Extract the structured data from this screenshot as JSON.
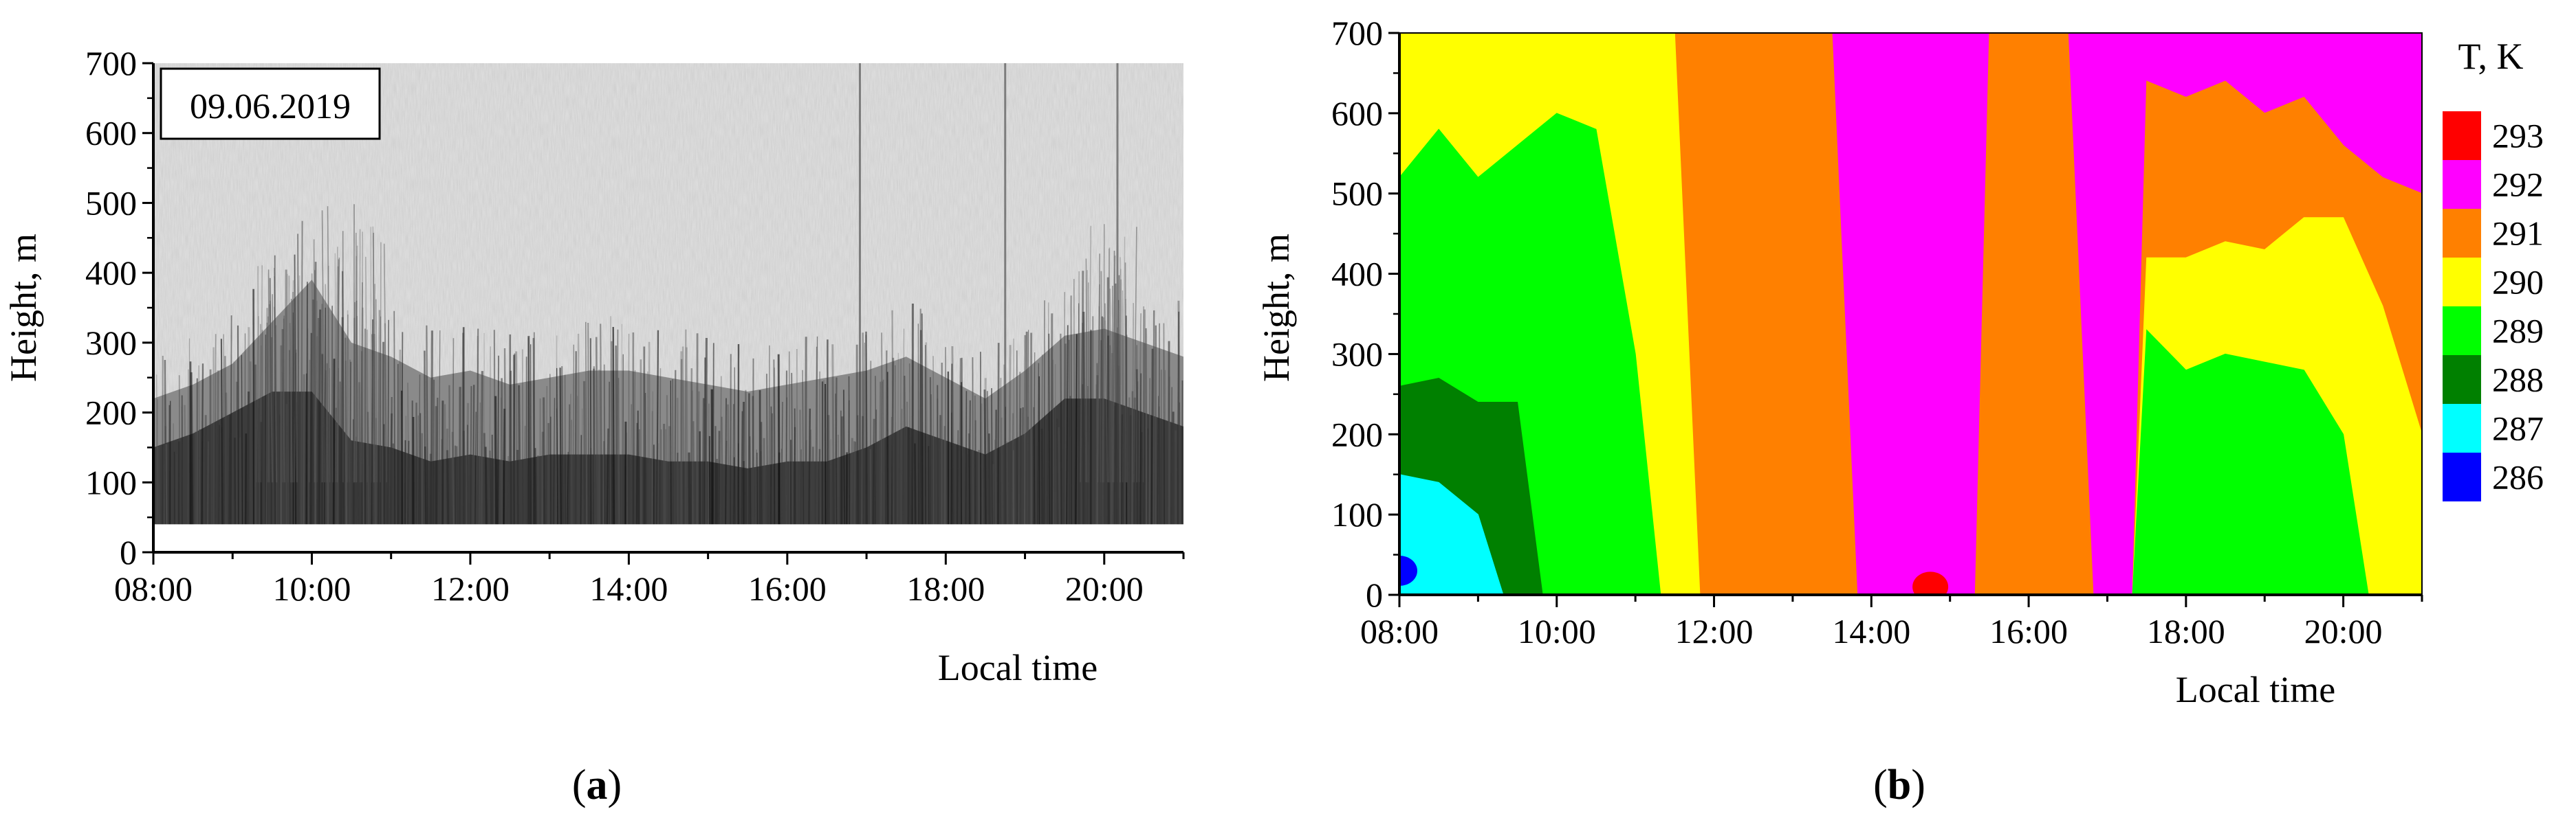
{
  "chart_data": [
    {
      "id": "a",
      "type": "heatmap",
      "panel_label": "a",
      "annotation": "09.06.2019",
      "xlabel": "Local time",
      "ylabel": "Height, m",
      "x_ticks": [
        "08:00",
        "10:00",
        "12:00",
        "14:00",
        "16:00",
        "18:00",
        "20:00"
      ],
      "y_ticks": [
        0,
        100,
        200,
        300,
        400,
        500,
        600,
        700
      ],
      "xlim": [
        "08:00",
        "21:00"
      ],
      "ylim": [
        0,
        700
      ],
      "sampling_lower_limit_m": 40,
      "colormap": "grayscale (dark = strong echo)",
      "mixing_layer_top_m": {
        "time": [
          "08:00",
          "08:30",
          "09:00",
          "09:30",
          "10:00",
          "10:30",
          "11:00",
          "11:30",
          "12:00",
          "12:30",
          "13:00",
          "13:30",
          "14:00",
          "14:30",
          "15:00",
          "15:30",
          "16:00",
          "16:30",
          "17:00",
          "17:30",
          "18:00",
          "18:30",
          "19:00",
          "19:30",
          "20:00",
          "20:30",
          "21:00"
        ],
        "height": [
          220,
          240,
          270,
          330,
          390,
          300,
          280,
          250,
          260,
          240,
          250,
          260,
          260,
          250,
          240,
          230,
          240,
          250,
          260,
          280,
          250,
          220,
          260,
          310,
          320,
          300,
          280
        ]
      },
      "dense_layer_top_m": {
        "time": [
          "08:00",
          "08:30",
          "09:00",
          "09:30",
          "10:00",
          "10:30",
          "11:00",
          "11:30",
          "12:00",
          "12:30",
          "13:00",
          "13:30",
          "14:00",
          "14:30",
          "15:00",
          "15:30",
          "16:00",
          "16:30",
          "17:00",
          "17:30",
          "18:00",
          "18:30",
          "19:00",
          "19:30",
          "20:00",
          "20:30",
          "21:00"
        ],
        "height": [
          150,
          170,
          200,
          230,
          230,
          160,
          150,
          130,
          140,
          130,
          140,
          140,
          140,
          130,
          130,
          120,
          130,
          130,
          150,
          180,
          160,
          140,
          170,
          220,
          220,
          200,
          180
        ]
      },
      "vertical_streaks": [
        "16:55",
        "18:45",
        "20:10"
      ],
      "echo_plumes": [
        {
          "time": "09:45",
          "top_m": 420
        },
        {
          "time": "10:30",
          "top_m": 500
        },
        {
          "time": "20:05",
          "top_m": 470
        }
      ]
    },
    {
      "id": "b",
      "type": "heatmap",
      "panel_label": "b",
      "xlabel": "Local time",
      "ylabel": "Height, m",
      "x_ticks": [
        "08:00",
        "10:00",
        "12:00",
        "14:00",
        "16:00",
        "18:00",
        "20:00"
      ],
      "y_ticks": [
        0,
        100,
        200,
        300,
        400,
        500,
        600,
        700
      ],
      "xlim": [
        "08:00",
        "21:00"
      ],
      "ylim": [
        0,
        700
      ],
      "colorbar": {
        "title": "T, K",
        "levels": [
          286,
          287,
          288,
          289,
          290,
          291,
          292,
          293,
          294
        ],
        "colors": [
          "#0000ff",
          "#00ffff",
          "#008000",
          "#00ff00",
          "#ffff00",
          "#ff8000",
          "#ff00ff",
          "#ff0000"
        ]
      },
      "temperature_bands": {
        "time": [
          "08:00",
          "08:30",
          "09:00",
          "09:30",
          "10:00",
          "10:30",
          "11:00",
          "11:30",
          "12:00",
          "12:30",
          "13:00",
          "13:30",
          "14:00",
          "14:30",
          "15:00",
          "15:30",
          "16:00",
          "16:30",
          "17:00",
          "17:30",
          "18:00",
          "18:30",
          "19:00",
          "19:30",
          "20:00",
          "20:30",
          "21:00"
        ],
        "series": [
          {
            "range": "287-288",
            "color": "#00ffff",
            "top_height_m": [
              150,
              140,
              100,
              0,
              0,
              0,
              0,
              0,
              0,
              0,
              0,
              0,
              0,
              0,
              0,
              0,
              0,
              0,
              0,
              0,
              0,
              0,
              0,
              0,
              0,
              0,
              0
            ]
          },
          {
            "range": "288-289",
            "color": "#008000",
            "top_height_m": [
              260,
              270,
              240,
              240,
              0,
              0,
              0,
              0,
              0,
              0,
              0,
              0,
              0,
              0,
              0,
              0,
              0,
              0,
              0,
              0,
              0,
              0,
              0,
              0,
              0,
              0,
              0
            ]
          },
          {
            "range": "289-290",
            "color": "#00ff00",
            "top_height_m": [
              520,
              580,
              520,
              560,
              600,
              580,
              300,
              0,
              0,
              0,
              0,
              0,
              0,
              0,
              0,
              0,
              0,
              0,
              0,
              330,
              280,
              300,
              290,
              280,
              200,
              0,
              0
            ]
          },
          {
            "range": "290-291",
            "color": "#ffff00",
            "top_height_m": [
              700,
              700,
              700,
              700,
              700,
              700,
              700,
              700,
              0,
              0,
              0,
              0,
              0,
              0,
              0,
              0,
              0,
              0,
              0,
              420,
              420,
              440,
              430,
              470,
              470,
              360,
              200
            ]
          },
          {
            "range": "291-292",
            "color": "#ff8000",
            "top_height_m": [
              700,
              700,
              700,
              700,
              700,
              700,
              700,
              700,
              700,
              700,
              700,
              700,
              0,
              0,
              0,
              700,
              700,
              700,
              0,
              640,
              620,
              640,
              600,
              620,
              560,
              520,
              500
            ]
          },
          {
            "range": "292-293",
            "color": "#ff00ff",
            "top_height_m": [
              700,
              700,
              700,
              700,
              700,
              700,
              700,
              700,
              700,
              700,
              700,
              700,
              700,
              700,
              700,
              700,
              700,
              700,
              700,
              700,
              700,
              700,
              700,
              700,
              700,
              700,
              700
            ]
          }
        ]
      },
      "warm_spot": {
        "time": "14:45",
        "height_m": 10,
        "color": "#ff0000"
      },
      "cold_spot": {
        "time": "08:00",
        "height_m": 30,
        "color": "#0000ff"
      }
    }
  ]
}
